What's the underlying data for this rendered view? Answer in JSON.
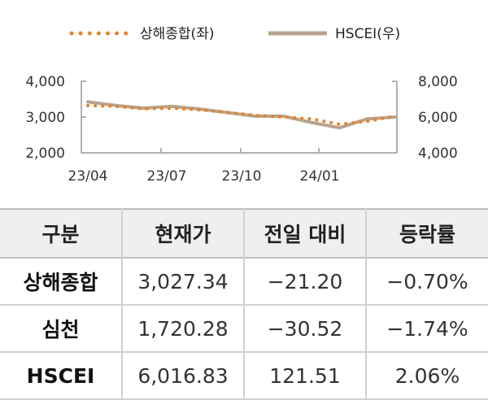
{
  "chart_data": {
    "type": "line",
    "legend": {
      "placement": "top",
      "items": [
        "상해종합(좌)",
        "HSCEI(우)"
      ]
    },
    "x_ticks": [
      "23/04",
      "23/07",
      "23/10",
      "24/01"
    ],
    "x": [
      "23/04",
      "23/05",
      "23/06",
      "23/07",
      "23/08",
      "23/09",
      "23/10",
      "23/11",
      "23/12",
      "24/01",
      "24/02",
      "24/03"
    ],
    "left_axis": {
      "ylim": [
        2000,
        4000
      ],
      "ticks": [
        "2,000",
        "3,000",
        "4,000"
      ]
    },
    "right_axis": {
      "ylim": [
        4000,
        8000
      ],
      "ticks": [
        "4,000",
        "6,000",
        "8,000"
      ]
    },
    "grid": false,
    "series": [
      {
        "name": "상해종합(좌)",
        "axis": "left",
        "style": "dotted",
        "color": "#e8822a",
        "values": [
          3320,
          3300,
          3230,
          3250,
          3200,
          3130,
          3050,
          3000,
          2950,
          2800,
          2880,
          3030
        ]
      },
      {
        "name": "HSCEI(우)",
        "axis": "right",
        "style": "solid",
        "color": "#b5a48c",
        "values": [
          6850,
          6650,
          6500,
          6600,
          6450,
          6250,
          6050,
          6050,
          5700,
          5400,
          5900,
          6000
        ]
      }
    ]
  },
  "table": {
    "headers": [
      "구분",
      "현재가",
      "전일 대비",
      "등락률"
    ],
    "rows": [
      [
        "상해종합",
        "3,027.34",
        "−21.20",
        "−0.70%"
      ],
      [
        "심천",
        "1,720.28",
        "−30.52",
        "−1.74%"
      ],
      [
        "HSCEI",
        "6,016.83",
        "121.51",
        "2.06%"
      ]
    ]
  }
}
